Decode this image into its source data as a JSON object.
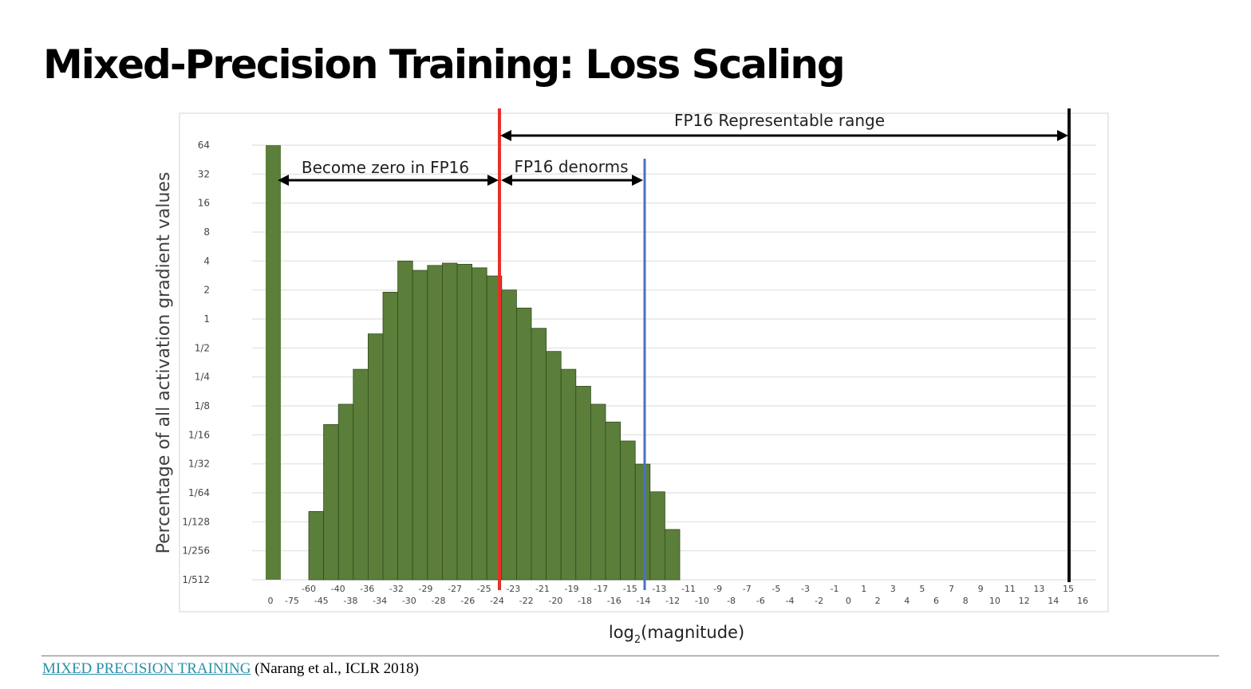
{
  "slide": {
    "title": "Mixed-Precision Training: Loss Scaling",
    "citation_link": "MIXED PRECISION TRAINING",
    "citation_rest": " (Narang et al., ICLR 2018)"
  },
  "chart_data": {
    "type": "bar",
    "title": "",
    "xlabel_main": "log",
    "xlabel_sub": "2",
    "xlabel_rest": "(magnitude)",
    "ylabel": "Percentage of all activation gradient values",
    "y_scale": "log2",
    "ylim": [
      0.001953125,
      64
    ],
    "y_ticks": [
      {
        "label": "64",
        "value": 64
      },
      {
        "label": "32",
        "value": 32
      },
      {
        "label": "16",
        "value": 16
      },
      {
        "label": "8",
        "value": 8
      },
      {
        "label": "4",
        "value": 4
      },
      {
        "label": "2",
        "value": 2
      },
      {
        "label": "1",
        "value": 1
      },
      {
        "label": "1/2",
        "value": 0.5
      },
      {
        "label": "1/4",
        "value": 0.25
      },
      {
        "label": "1/8",
        "value": 0.125
      },
      {
        "label": "1/16",
        "value": 0.0625
      },
      {
        "label": "1/32",
        "value": 0.03125
      },
      {
        "label": "1/64",
        "value": 0.015625
      },
      {
        "label": "1/128",
        "value": 0.0078125
      },
      {
        "label": "1/256",
        "value": 0.00390625
      },
      {
        "label": "1/512",
        "value": 0.001953125
      }
    ],
    "grid": true,
    "x_ticks_upper": [
      "-60",
      "-40",
      "-36",
      "-32",
      "-29",
      "-27",
      "-25",
      "-23",
      "-21",
      "-19",
      "-17",
      "-15",
      "-13",
      "-11",
      "-9",
      "-7",
      "-5",
      "-3",
      "-1",
      "1",
      "3",
      "5",
      "7",
      "9",
      "11",
      "13",
      "15"
    ],
    "x_ticks_lower": [
      "0",
      "-75",
      "-45",
      "-38",
      "-34",
      "-30",
      "-28",
      "-26",
      "-24",
      "-22",
      "-20",
      "-18",
      "-16",
      "-14",
      "-12",
      "-10",
      "-8",
      "-6",
      "-4",
      "-2",
      "0",
      "2",
      "4",
      "6",
      "8",
      "10",
      "12",
      "14",
      "16"
    ],
    "bar_color": "#5b7f3a",
    "series": [
      {
        "values": [
          {
            "bin": "0",
            "value": 64
          },
          {
            "bin": "-60",
            "value": 0.01
          },
          {
            "bin": "-45",
            "value": 0.08
          },
          {
            "bin": "-40",
            "value": 0.13
          },
          {
            "bin": "-38",
            "value": 0.3
          },
          {
            "bin": "-36",
            "value": 0.7
          },
          {
            "bin": "-34",
            "value": 1.9
          },
          {
            "bin": "-32",
            "value": 4
          },
          {
            "bin": "-30",
            "value": 3.2
          },
          {
            "bin": "-29",
            "value": 3.6
          },
          {
            "bin": "-28",
            "value": 3.8
          },
          {
            "bin": "-27",
            "value": 3.7
          },
          {
            "bin": "-26",
            "value": 3.4
          },
          {
            "bin": "-25",
            "value": 2.8
          },
          {
            "bin": "-24",
            "value": 2
          },
          {
            "bin": "-23",
            "value": 1.3
          },
          {
            "bin": "-22",
            "value": 0.8
          },
          {
            "bin": "-21",
            "value": 0.46
          },
          {
            "bin": "-20",
            "value": 0.3
          },
          {
            "bin": "-19",
            "value": 0.2
          },
          {
            "bin": "-18",
            "value": 0.13
          },
          {
            "bin": "-17",
            "value": 0.085
          },
          {
            "bin": "-16",
            "value": 0.054
          },
          {
            "bin": "-15",
            "value": 0.031
          },
          {
            "bin": "-14",
            "value": 0.016
          },
          {
            "bin": "-13",
            "value": 0.0065
          }
        ]
      }
    ],
    "annotations": {
      "fp16_range_label": "FP16 Representable range",
      "zero_label": "Become zero in FP16",
      "denorm_label": "FP16 denorms",
      "red_line_color": "#e8302a",
      "blue_line_color": "#4a72c4",
      "black_line_color": "#111111"
    }
  }
}
